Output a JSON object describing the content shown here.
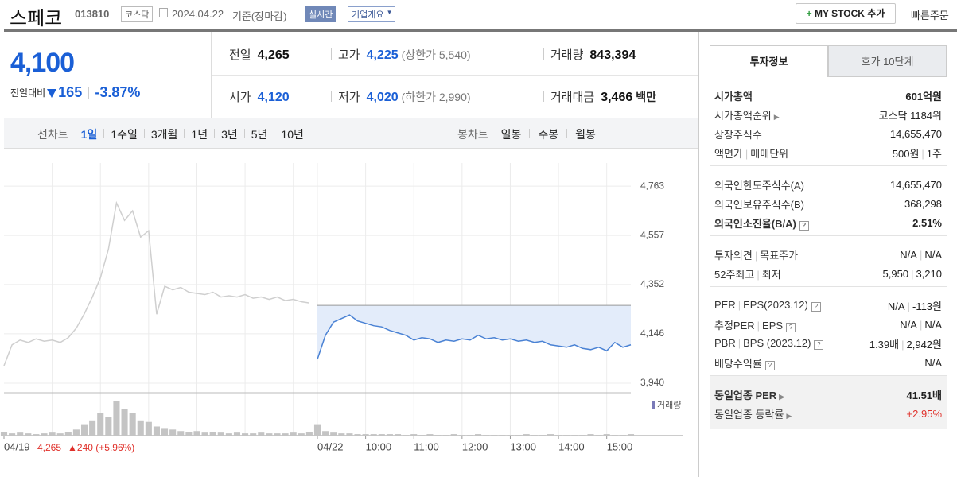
{
  "header": {
    "name": "스페코",
    "code": "013810",
    "market": "코스닥",
    "date": "2024.04.22",
    "basis": "기준(장마감)",
    "realtime": "실시간",
    "company_info": "기업개요",
    "mystock": "MY STOCK 추가",
    "quick_order": "빠른주문"
  },
  "price": {
    "current": "4,100",
    "change_label": "전일대비",
    "change": "165",
    "change_pct": "-3.87%"
  },
  "summary": [
    [
      {
        "label": "전일",
        "value": "4,265",
        "color": "#111"
      },
      {
        "label": "고가",
        "value": "4,225",
        "limit": "(상한가 5,540)",
        "color": "#1a5fd6"
      },
      {
        "label": "거래량",
        "value": "843,394",
        "color": "#111"
      }
    ],
    [
      {
        "label": "시가",
        "value": "4,120",
        "color": "#1a5fd6"
      },
      {
        "label": "저가",
        "value": "4,020",
        "limit": "(하한가 2,990)",
        "color": "#1a5fd6"
      },
      {
        "label": "거래대금",
        "value": "3,466",
        "unit": "백만",
        "color": "#111"
      }
    ]
  ],
  "chart_tabs": {
    "line": "선차트",
    "periods": [
      "1일",
      "1주일",
      "3개월",
      "1년",
      "3년",
      "5년",
      "10년"
    ],
    "active": 0,
    "candle": "봉차트",
    "candles": [
      "일봉",
      "주봉",
      "월봉"
    ]
  },
  "prev_day": {
    "close": "4,265",
    "change": "240",
    "change_pct": "(+5.96%)"
  },
  "chart_data": {
    "type": "line",
    "x": [
      0,
      10,
      20,
      30,
      40,
      50,
      60,
      70,
      80,
      90,
      100,
      110,
      120,
      130,
      140,
      150,
      160,
      170,
      180,
      190,
      200,
      210,
      220,
      230,
      240,
      250,
      260,
      270,
      280,
      290,
      300,
      310,
      320,
      330,
      340,
      350,
      360,
      370,
      380,
      390,
      400,
      410,
      420,
      430,
      440,
      450,
      460,
      470,
      480,
      490,
      500,
      510,
      520,
      530,
      540,
      550,
      560,
      570,
      580,
      590,
      600,
      610,
      620,
      630,
      640,
      650,
      660,
      670,
      680,
      690,
      700,
      710,
      720,
      730,
      740,
      750,
      760,
      770,
      780
    ],
    "series": [
      {
        "color": "#cfcfcf",
        "values": [
          4013,
          4100,
          4120,
          4110,
          4125,
          4115,
          4120,
          4110,
          4130,
          4170,
          4230,
          4300,
          4380,
          4500,
          4693,
          4620,
          4660,
          4550,
          4577,
          4228,
          4345,
          4330,
          4340,
          4320,
          4315,
          4310,
          4320,
          4300,
          4305,
          4300,
          4310,
          4295,
          4300,
          4290,
          4300,
          4285,
          4290,
          4280,
          4275,
          null,
          null,
          null,
          null,
          null,
          null,
          null,
          null,
          null,
          null,
          null,
          null,
          null,
          null,
          null,
          null,
          null,
          null,
          null,
          null,
          null,
          null,
          null,
          null,
          null,
          null,
          null,
          null,
          null,
          null,
          null,
          null,
          null,
          null,
          null,
          null,
          null,
          null,
          null,
          null
        ]
      },
      {
        "color": "#4a82d4",
        "fill": "#e3ecfa",
        "values": [
          null,
          null,
          null,
          null,
          null,
          null,
          null,
          null,
          null,
          null,
          null,
          null,
          null,
          null,
          null,
          null,
          null,
          null,
          null,
          null,
          null,
          null,
          null,
          null,
          null,
          null,
          null,
          null,
          null,
          null,
          null,
          null,
          null,
          null,
          null,
          null,
          null,
          null,
          null,
          4040,
          4140,
          4195,
          4210,
          4225,
          4200,
          4190,
          4180,
          4175,
          4160,
          4150,
          4140,
          4120,
          4130,
          4125,
          4110,
          4120,
          4115,
          4125,
          4120,
          4140,
          4125,
          4130,
          4120,
          4125,
          4115,
          4120,
          4110,
          4115,
          4100,
          4095,
          4090,
          4100,
          4085,
          4080,
          4090,
          4075,
          4110,
          4090,
          4100
        ]
      }
    ],
    "baseline": 4265,
    "volume": {
      "name": "거래량",
      "color": "#c4c4c4",
      "ylim": [
        0,
        50
      ],
      "values": [
        5,
        3,
        4,
        3,
        2,
        3,
        4,
        3,
        5,
        8,
        15,
        20,
        30,
        25,
        45,
        35,
        30,
        20,
        18,
        12,
        10,
        8,
        6,
        5,
        6,
        4,
        5,
        4,
        3,
        4,
        3,
        3,
        4,
        3,
        3,
        3,
        4,
        3,
        5,
        15,
        6,
        4,
        3,
        3,
        2,
        2,
        2,
        2,
        2,
        2,
        1,
        2,
        1,
        2,
        1,
        1,
        2,
        1,
        1,
        2,
        1,
        1,
        1,
        1,
        1,
        2,
        1,
        1,
        2,
        1,
        1,
        1,
        1,
        2,
        1,
        2,
        1,
        1,
        2
      ]
    },
    "xlim": [
      0,
      780
    ],
    "xticks": [
      {
        "value": 0,
        "label": "04/19"
      },
      {
        "value": 390,
        "label": "04/22"
      },
      {
        "value": 450,
        "label": "10:00"
      },
      {
        "value": 510,
        "label": "11:00"
      },
      {
        "value": 570,
        "label": "12:00"
      },
      {
        "value": 630,
        "label": "13:00"
      },
      {
        "value": 690,
        "label": "14:00"
      },
      {
        "value": 750,
        "label": "15:00"
      }
    ],
    "xgrid": [
      60,
      120,
      180,
      240,
      300,
      360
    ],
    "ylim": [
      3900,
      4800
    ],
    "yticks": [
      {
        "value": 3940,
        "label": "3,940"
      },
      {
        "value": 4146,
        "label": "4,146"
      },
      {
        "value": 4352,
        "label": "4,352"
      },
      {
        "value": 4557,
        "label": "4,557"
      },
      {
        "value": 4763,
        "label": "4,763"
      }
    ],
    "grid": true
  },
  "sidebar": {
    "tabs": [
      "투자정보",
      "호가 10단계"
    ],
    "active": 0,
    "groups": [
      [
        {
          "label": [
            "시가총액"
          ],
          "value": [
            "601억원"
          ],
          "bold": true
        },
        {
          "label": [
            "시가총액순위"
          ],
          "icon": "arrow",
          "value": [
            "코스닥 1184위"
          ]
        },
        {
          "label": [
            "상장주식수"
          ],
          "value": [
            "14,655,470"
          ]
        },
        {
          "label": [
            "액면가",
            "매매단위"
          ],
          "value": [
            "500원",
            "1주"
          ]
        }
      ],
      [
        {
          "label": [
            "외국인한도주식수(A)"
          ],
          "value": [
            "14,655,470"
          ]
        },
        {
          "label": [
            "외국인보유주식수(B)"
          ],
          "value": [
            "368,298"
          ]
        },
        {
          "label": [
            "외국인소진율(B/A)"
          ],
          "icon": "help",
          "value": [
            "2.51%"
          ],
          "bold": true
        }
      ],
      [
        {
          "label": [
            "투자의견",
            "목표주가"
          ],
          "value": [
            "N/A",
            "N/A"
          ]
        },
        {
          "label": [
            "52주최고",
            "최저"
          ],
          "value": [
            "5,950",
            "3,210"
          ]
        }
      ],
      [
        {
          "label": [
            "PER",
            "EPS(2023.12)"
          ],
          "icon": "help",
          "value": [
            "N/A",
            "-113원"
          ]
        },
        {
          "label": [
            "추정PER",
            "EPS"
          ],
          "icon": "help",
          "value": [
            "N/A",
            "N/A"
          ]
        },
        {
          "label": [
            "PBR",
            "BPS (2023.12)"
          ],
          "icon": "help",
          "value": [
            "1.39배",
            "2,942원"
          ]
        },
        {
          "label": [
            "배당수익률"
          ],
          "icon": "help",
          "value": [
            "N/A"
          ]
        }
      ],
      [
        {
          "label": [
            "동일업종 PER"
          ],
          "icon": "arrow",
          "value": [
            "41.51배"
          ],
          "bold": true
        },
        {
          "label": [
            "동일업종 등락률"
          ],
          "icon": "arrow",
          "value": [
            "+2.95%"
          ],
          "color": "#e0302a"
        }
      ]
    ]
  }
}
